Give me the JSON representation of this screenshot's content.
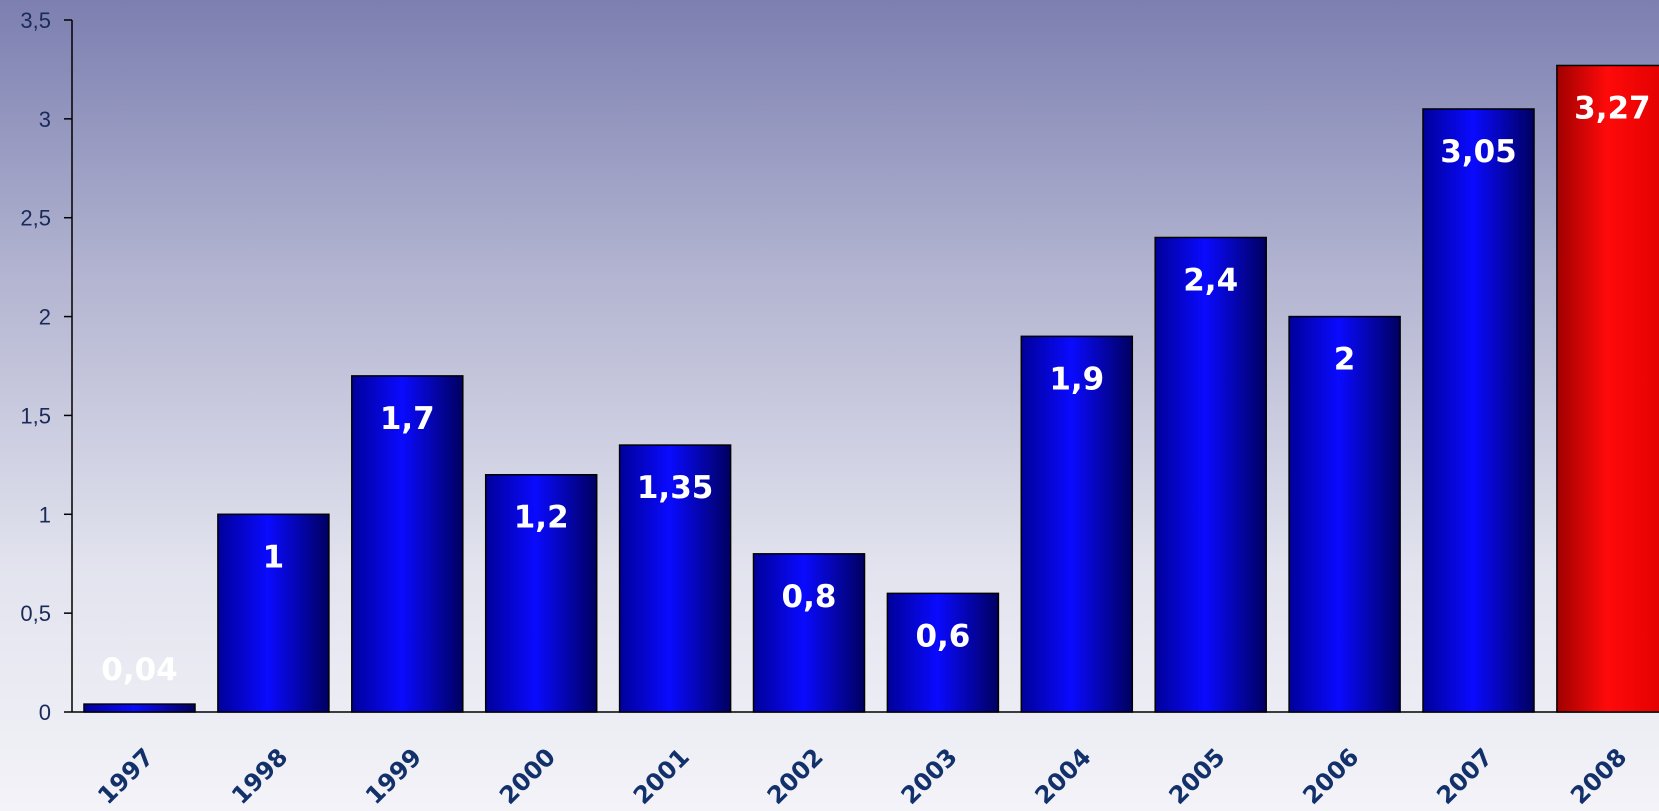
{
  "chart_data": {
    "type": "bar",
    "title": "",
    "xlabel": "",
    "ylabel": "",
    "categories": [
      "1997",
      "1998",
      "1999",
      "2000",
      "2001",
      "2002",
      "2003",
      "2004",
      "2005",
      "2006",
      "2007",
      "2008"
    ],
    "values": [
      0.04,
      1,
      1.7,
      1.2,
      1.35,
      0.8,
      0.6,
      1.9,
      2.4,
      2,
      3.05,
      3.27
    ],
    "data_labels": [
      "0,04",
      "1",
      "1,7",
      "1,2",
      "1,35",
      "0,8",
      "0,6",
      "1,9",
      "2,4",
      "2",
      "3,05",
      "3,27"
    ],
    "ylim": [
      0,
      3.5
    ],
    "yticks": [
      "0",
      "0,5",
      "1",
      "1,5",
      "2",
      "2,5",
      "3",
      "3,5"
    ],
    "grid": false,
    "legend": "none",
    "colors": {
      "bar": "#0000ee",
      "highlight": "#ee0000",
      "label": "#ffffff",
      "xtick": "#12306a"
    },
    "highlight_category": "2008"
  }
}
